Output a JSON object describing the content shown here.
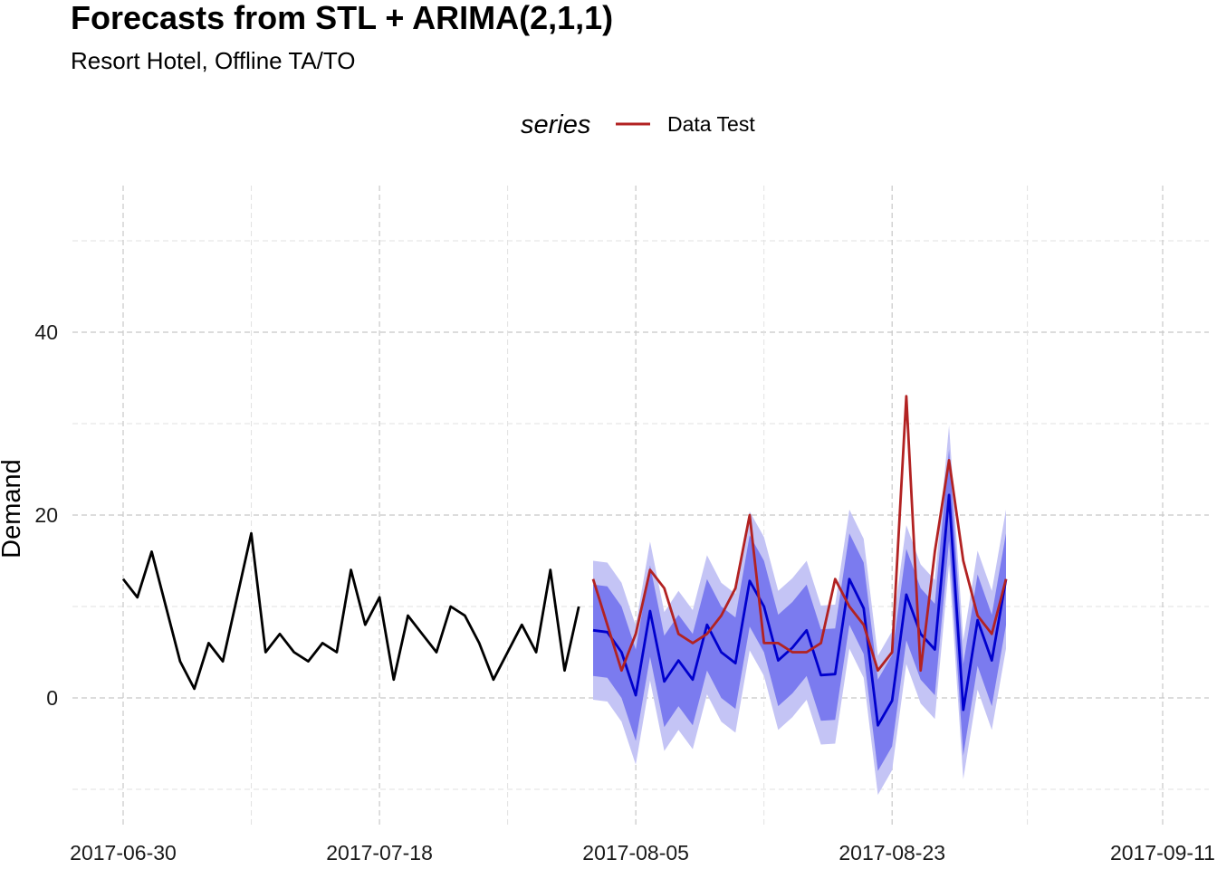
{
  "chart_data": {
    "type": "line",
    "title": "Forecasts from STL +  ARIMA(2,1,1)",
    "subtitle": "Resort Hotel, Offline TA/TO",
    "xlabel": "",
    "ylabel": "Demand",
    "legend": {
      "title": "series",
      "position": "top",
      "entries": [
        "Data Test"
      ]
    },
    "x_ticks": [
      "2017-06-30",
      "2017-07-18",
      "2017-08-05",
      "2017-08-23",
      "2017-09-11"
    ],
    "y_ticks": [
      0,
      20,
      40
    ],
    "xlim": [
      "2017-06-30",
      "2017-09-11"
    ],
    "ylim": [
      -13,
      55
    ],
    "grid": true,
    "colors": {
      "history": "#000000",
      "data_test": "#b22222",
      "forecast": "#0000cd",
      "band80": "#7b7bef",
      "band95": "#c4c4f5"
    },
    "series": [
      {
        "role": "history",
        "start_date": "2017-06-30",
        "values": [
          13,
          11,
          16,
          10,
          4,
          1,
          6,
          4,
          11,
          18,
          5,
          7,
          5,
          4,
          6,
          5,
          14,
          8,
          11,
          2,
          9,
          7,
          5,
          10,
          9,
          6,
          2,
          5,
          8,
          5,
          14,
          3,
          10
        ]
      },
      {
        "role": "forecast",
        "start_date": "2017-08-02",
        "mean": [
          7.4,
          7.2,
          5.0,
          0.3,
          9.5,
          1.8,
          4.1,
          2.0,
          8.0,
          5.0,
          3.8,
          12.8,
          10.0,
          4.1,
          5.5,
          7.4,
          2.5,
          2.6,
          13.0,
          9.8,
          -3.0,
          -0.3,
          11.3,
          7.0,
          5.3,
          22.2,
          -1.3,
          8.5,
          4.1,
          13.0
        ],
        "lo80": [
          2.4,
          2.2,
          0.0,
          -4.7,
          4.5,
          -3.2,
          -0.9,
          -3.0,
          3.0,
          0.0,
          -1.2,
          7.8,
          5.0,
          -0.9,
          0.5,
          2.4,
          -2.5,
          -2.4,
          8.0,
          4.8,
          -8.0,
          -5.3,
          6.3,
          2.0,
          0.3,
          17.2,
          -6.3,
          3.5,
          -0.9,
          8.0
        ],
        "hi80": [
          12.4,
          12.2,
          10.0,
          5.3,
          14.5,
          6.8,
          9.1,
          7.0,
          13.0,
          10.0,
          8.8,
          17.8,
          15.0,
          9.1,
          10.5,
          12.4,
          7.5,
          7.6,
          18.0,
          14.8,
          2.0,
          4.7,
          16.3,
          12.0,
          10.3,
          27.2,
          3.7,
          13.5,
          9.1,
          18.0
        ],
        "lo95": [
          -0.2,
          -0.4,
          -2.6,
          -7.3,
          1.9,
          -5.8,
          -3.5,
          -5.6,
          0.4,
          -2.6,
          -3.8,
          5.2,
          2.4,
          -3.5,
          -2.1,
          -0.2,
          -5.1,
          -5.0,
          5.4,
          2.2,
          -10.6,
          -7.9,
          3.7,
          -0.6,
          -2.3,
          14.6,
          -8.9,
          0.9,
          -3.5,
          5.4
        ],
        "hi95": [
          15.0,
          14.8,
          12.6,
          7.9,
          17.1,
          9.4,
          11.7,
          9.6,
          15.6,
          12.6,
          11.4,
          20.4,
          17.6,
          11.7,
          13.1,
          15.0,
          10.1,
          10.2,
          20.6,
          17.4,
          4.6,
          7.3,
          18.9,
          14.6,
          12.9,
          29.8,
          6.3,
          16.1,
          11.7,
          20.6
        ]
      },
      {
        "role": "data_test",
        "name": "Data Test",
        "start_date": "2017-08-02",
        "values": [
          13,
          8,
          3,
          7,
          14,
          12,
          7,
          6,
          7,
          9,
          12,
          20,
          6,
          6,
          5,
          5,
          6,
          13,
          10,
          8,
          3,
          5,
          33,
          3,
          16,
          26,
          15,
          9,
          7,
          13
        ]
      }
    ]
  }
}
